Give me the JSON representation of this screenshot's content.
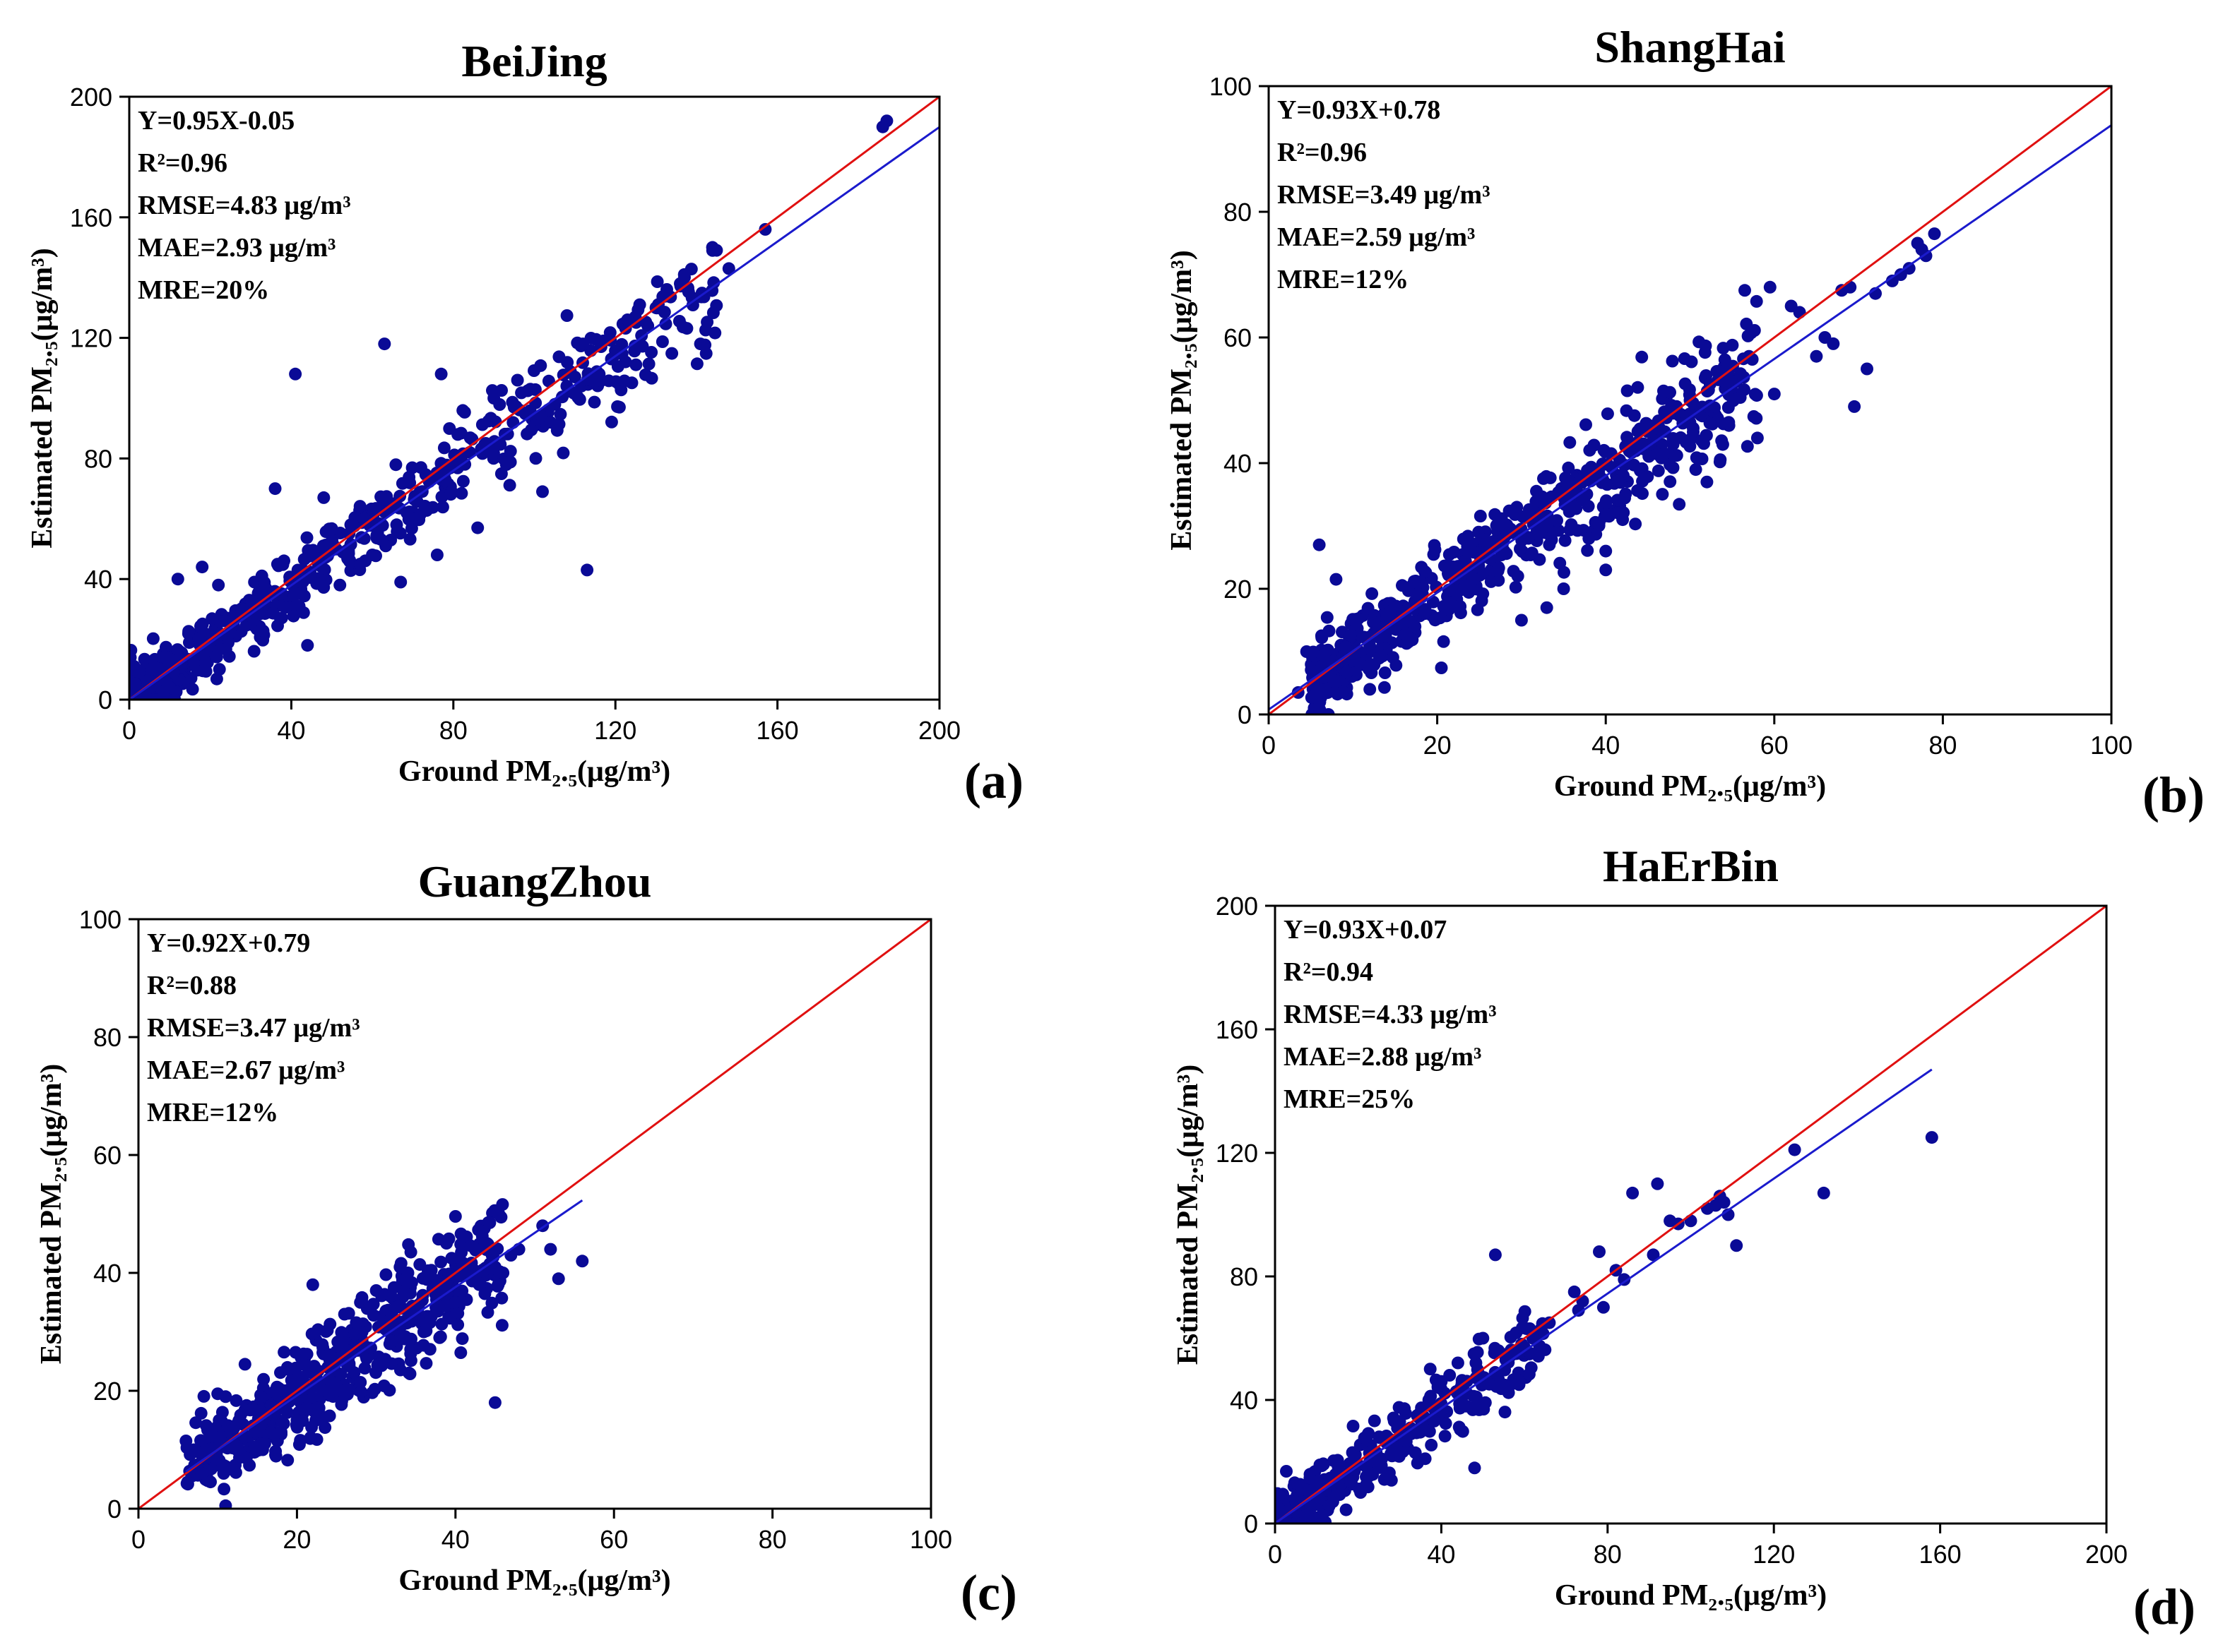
{
  "colors": {
    "points": "#0a0a96",
    "fit_line": "#1a1acc",
    "one_to_one_line": "#e01010",
    "axes": "#000000",
    "background": "#ffffff"
  },
  "chart_data": [
    {
      "type": "scatter",
      "id": "a",
      "panel_label": "(a)",
      "title": "BeiJing",
      "xlabel": "Ground PM₂.₅(μg/m³)",
      "ylabel": "Estimated PM₂.₅(μg/m³)",
      "xlim": [
        0,
        200
      ],
      "ylim": [
        0,
        200
      ],
      "xticks": [
        0,
        40,
        80,
        120,
        160,
        200
      ],
      "yticks": [
        0,
        40,
        80,
        120,
        160,
        200
      ],
      "fit": {
        "slope": 0.95,
        "intercept": -0.05,
        "x_range": [
          0,
          200
        ]
      },
      "stats": [
        "Y=0.95X-0.05",
        "R²=0.96",
        "RMSE=4.83 μg/m³",
        "MAE=2.93 μg/m³",
        "MRE=20%"
      ],
      "grid": false,
      "cluster": {
        "n": 700,
        "xmin": 0,
        "xmax": 145,
        "skew": 2.2,
        "spread": 4.5,
        "seed": 11
      },
      "points": [
        [
          186,
          190
        ],
        [
          187,
          192
        ],
        [
          157,
          156
        ],
        [
          148,
          143
        ],
        [
          144,
          149
        ],
        [
          141,
          118
        ],
        [
          137,
          141
        ],
        [
          130,
          130
        ],
        [
          126,
          131
        ],
        [
          121,
          97
        ],
        [
          116,
          108
        ],
        [
          113,
          43
        ],
        [
          102,
          69
        ],
        [
          86,
          57
        ],
        [
          77,
          108
        ],
        [
          76,
          48
        ],
        [
          67,
          39
        ],
        [
          63,
          118
        ],
        [
          41,
          108
        ],
        [
          48,
          67
        ],
        [
          36,
          70
        ],
        [
          12,
          40
        ],
        [
          18,
          44
        ],
        [
          22,
          38
        ],
        [
          44,
          18
        ],
        [
          52,
          38
        ],
        [
          57,
          45
        ],
        [
          60,
          48
        ],
        [
          90,
          100
        ],
        [
          95,
          97
        ],
        [
          99,
          103
        ],
        [
          108,
          104
        ],
        [
          110,
          107
        ],
        [
          112,
          118
        ],
        [
          117,
          119
        ],
        [
          119,
          113
        ],
        [
          123,
          126
        ],
        [
          128,
          124
        ],
        [
          133,
          134
        ],
        [
          136,
          138
        ],
        [
          104,
          92
        ],
        [
          88,
          85
        ],
        [
          72,
          77
        ],
        [
          66,
          58
        ],
        [
          58,
          60
        ]
      ]
    },
    {
      "type": "scatter",
      "id": "b",
      "panel_label": "(b)",
      "title": "ShangHai",
      "xlabel": "Ground PM₂.₅(μg/m³)",
      "ylabel": "Estimated PM₂.₅(μg/m³)",
      "xlim": [
        0,
        100
      ],
      "ylim": [
        0,
        100
      ],
      "xticks": [
        0,
        20,
        40,
        60,
        80,
        100
      ],
      "yticks": [
        0,
        20,
        40,
        60,
        80,
        100
      ],
      "fit": {
        "slope": 0.93,
        "intercept": 0.78,
        "x_range": [
          0,
          100
        ]
      },
      "stats": [
        "Y=0.93X+0.78",
        "R²=0.96",
        "RMSE=3.49 μg/m³",
        "MAE=2.59 μg/m³",
        "MRE=12%"
      ],
      "grid": false,
      "cluster": {
        "n": 650,
        "xmin": 5,
        "xmax": 58,
        "skew": 1.3,
        "spread": 2.6,
        "seed": 23
      },
      "points": [
        [
          3.5,
          3.5
        ],
        [
          4.5,
          10
        ],
        [
          6,
          27
        ],
        [
          8,
          21.5
        ],
        [
          56.5,
          67.5
        ],
        [
          59.5,
          68
        ],
        [
          62,
          65
        ],
        [
          63,
          64
        ],
        [
          65,
          57
        ],
        [
          66,
          60
        ],
        [
          67,
          59
        ],
        [
          68,
          67.5
        ],
        [
          69,
          68
        ],
        [
          69.5,
          49
        ],
        [
          71,
          55
        ],
        [
          72,
          67
        ],
        [
          74,
          69
        ],
        [
          75,
          70
        ],
        [
          76,
          71
        ],
        [
          77,
          75
        ],
        [
          77.5,
          74
        ],
        [
          78,
          73
        ],
        [
          79,
          76.5
        ],
        [
          52,
          37
        ],
        [
          58,
          44
        ],
        [
          60,
          51
        ],
        [
          57,
          57
        ],
        [
          55,
          53
        ],
        [
          50,
          50
        ],
        [
          48,
          43
        ],
        [
          47,
          45
        ],
        [
          45,
          45
        ],
        [
          42,
          31
        ],
        [
          40,
          23
        ],
        [
          40,
          26
        ],
        [
          38,
          28
        ],
        [
          35,
          20
        ],
        [
          30,
          15
        ],
        [
          33,
          17
        ],
        [
          12,
          4
        ]
      ]
    },
    {
      "type": "scatter",
      "id": "c",
      "panel_label": "(c)",
      "title": "GuangZhou",
      "xlabel": "Ground PM₂.₅(μg/m³)",
      "ylabel": "Estimated PM₂.₅(μg/m³)",
      "xlim": [
        0,
        100
      ],
      "ylim": [
        0,
        100
      ],
      "xticks": [
        0,
        20,
        40,
        60,
        80,
        100
      ],
      "yticks": [
        0,
        20,
        40,
        60,
        80,
        100
      ],
      "fit": {
        "slope": 0.92,
        "intercept": 0.79,
        "x_range": [
          6,
          56
        ]
      },
      "stats": [
        "Y=0.92X+0.79",
        "R²=0.88",
        "RMSE=3.47 μg/m³",
        "MAE=2.67 μg/m³",
        "MRE=12%"
      ],
      "grid": false,
      "cluster": {
        "n": 520,
        "xmin": 6,
        "xmax": 46,
        "skew": 1.0,
        "spread": 3.2,
        "seed": 37
      },
      "points": [
        [
          11,
          0.5
        ],
        [
          11,
          19
        ],
        [
          10,
          19.5
        ],
        [
          22,
          38
        ],
        [
          45,
          18
        ],
        [
          51,
          48
        ],
        [
          52,
          44
        ],
        [
          53,
          39
        ],
        [
          56,
          42
        ],
        [
          48,
          44
        ],
        [
          47,
          43
        ],
        [
          45,
          41
        ],
        [
          44,
          45
        ],
        [
          46,
          40
        ],
        [
          43,
          38
        ],
        [
          40,
          35
        ],
        [
          38,
          29
        ],
        [
          36,
          30
        ],
        [
          34,
          40
        ],
        [
          33,
          41
        ],
        [
          30,
          37
        ],
        [
          28,
          35
        ],
        [
          26,
          33
        ],
        [
          25,
          20
        ],
        [
          24,
          22
        ],
        [
          20,
          15
        ],
        [
          18,
          13
        ],
        [
          15,
          10
        ],
        [
          13,
          9
        ],
        [
          6,
          11.5
        ],
        [
          7,
          10
        ],
        [
          8,
          6
        ]
      ]
    },
    {
      "type": "scatter",
      "id": "d",
      "panel_label": "(d)",
      "title": "HaErBin",
      "xlabel": "Ground PM₂.₅(μg/m³)",
      "ylabel": "Estimated PM₂.₅(μg/m³)",
      "xlim": [
        0,
        200
      ],
      "ylim": [
        0,
        200
      ],
      "xticks": [
        0,
        40,
        80,
        120,
        160,
        200
      ],
      "yticks": [
        0,
        40,
        80,
        120,
        160,
        200
      ],
      "fit": {
        "slope": 0.93,
        "intercept": 0.07,
        "x_range": [
          0,
          158
        ]
      },
      "stats": [
        "Y=0.93X+0.07",
        "R²=0.94",
        "RMSE=4.33 μg/m³",
        "MAE=2.88 μg/m³",
        "MRE=25%"
      ],
      "grid": false,
      "cluster": {
        "n": 420,
        "xmin": 0,
        "xmax": 65,
        "skew": 2.0,
        "spread": 4.0,
        "seed": 51
      },
      "points": [
        [
          158,
          125
        ],
        [
          132,
          107
        ],
        [
          125,
          121
        ],
        [
          111,
          90
        ],
        [
          109,
          100
        ],
        [
          108,
          104
        ],
        [
          107,
          106
        ],
        [
          106,
          103
        ],
        [
          104,
          102
        ],
        [
          100,
          98
        ],
        [
          97,
          97
        ],
        [
          95,
          98
        ],
        [
          92,
          110
        ],
        [
          91,
          87
        ],
        [
          86,
          107
        ],
        [
          84,
          79
        ],
        [
          82,
          82
        ],
        [
          79,
          70
        ],
        [
          78,
          88
        ],
        [
          74,
          72
        ],
        [
          73,
          69
        ],
        [
          72,
          75
        ],
        [
          66,
          65
        ],
        [
          64,
          63
        ],
        [
          62,
          60
        ],
        [
          60,
          57
        ],
        [
          58,
          55
        ],
        [
          56,
          55
        ],
        [
          53,
          87
        ],
        [
          50,
          60
        ],
        [
          48,
          18
        ],
        [
          46,
          38
        ],
        [
          44,
          52
        ],
        [
          42,
          48
        ],
        [
          40,
          46
        ],
        [
          37,
          40
        ],
        [
          35,
          36
        ],
        [
          30,
          33
        ],
        [
          28,
          14
        ]
      ]
    }
  ]
}
